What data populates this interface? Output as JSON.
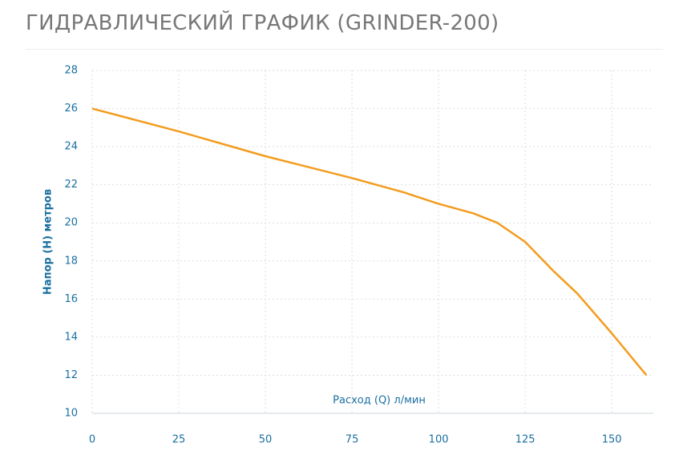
{
  "chart_data": {
    "type": "line",
    "title": "ГИДРАВЛИЧЕСКИЙ ГРАФИК (GRINDER-200)",
    "x_label": "Расход (Q) л/мин",
    "y_label": "Напор (H) метров",
    "x": [
      0,
      25,
      50,
      75,
      90,
      100,
      110,
      117,
      125,
      133,
      140,
      150,
      160
    ],
    "series": [
      {
        "name": "GRINDER-200",
        "color": "#f39c1e",
        "values": [
          26,
          24.8,
          23.5,
          22.35,
          21.6,
          21,
          20.5,
          20,
          19,
          17.5,
          16.3,
          14.2,
          12
        ]
      }
    ],
    "xlim": [
      0,
      162
    ],
    "xticks": [
      0,
      25,
      50,
      75,
      100,
      125,
      150
    ],
    "ylim": [
      10,
      28
    ],
    "yticks": [
      10,
      12,
      14,
      16,
      18,
      20,
      22,
      24,
      26,
      28
    ],
    "grid": true
  }
}
